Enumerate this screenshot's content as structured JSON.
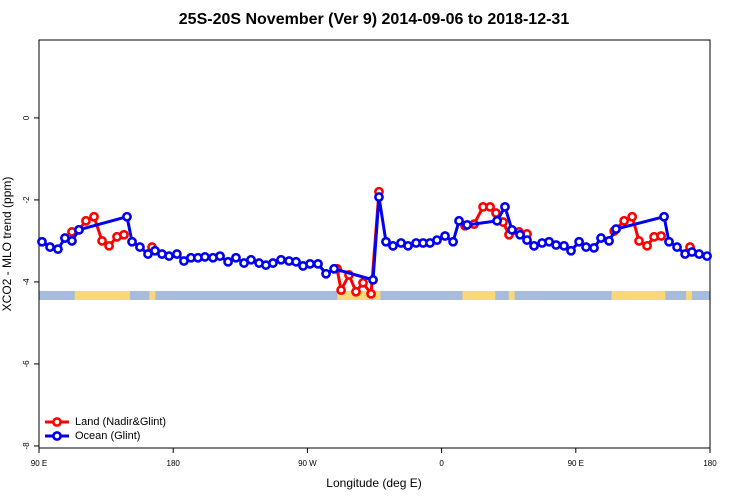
{
  "chart_data": {
    "type": "line",
    "title": "25S-20S November (Ver 9)   2014-09-06 to 2018-12-31",
    "xlabel": "Longitude (deg E)",
    "ylabel": "XCO2 - MLO trend (ppm)",
    "xlim": [
      90,
      540
    ],
    "ylim": [
      -8.05,
      1.9
    ],
    "xticks": [
      {
        "value": 90,
        "label": "90 E"
      },
      180,
      {
        "value": 270,
        "label": "90 W"
      },
      {
        "value": 360,
        "label": "0"
      },
      {
        "value": 450,
        "label": "90 E"
      },
      {
        "value": 540,
        "label": "180"
      }
    ],
    "yticks": [
      0,
      -2,
      -4,
      -6,
      -8
    ],
    "legend": "bottom-left",
    "mask": {
      "y": [
        -4.44,
        -4.22
      ],
      "ocean_color": "#a7bbdc",
      "land_color": "#f8d878",
      "land": [
        [
          114,
          151
        ],
        [
          164,
          168
        ],
        [
          290,
          319
        ],
        [
          374,
          396
        ],
        [
          405,
          409
        ],
        [
          474,
          510
        ],
        [
          524,
          528
        ]
      ]
    },
    "series": [
      {
        "name": "Land (Nadir&Glint)",
        "color": "#ff0000",
        "x": [
          112.1,
          116.8,
          121.5,
          126.9,
          132.3,
          137.0,
          142.3,
          147.0,
          150,
          165.8,
          250,
          289.9,
          292.6,
          297.9,
          302.6,
          307.3,
          312.7,
          318.0,
          340,
          375.7,
          381.8,
          387.8,
          392.5,
          396.5,
          401.2,
          405.2,
          411.9,
          417.3,
          450,
          475.7,
          482.4,
          487.8,
          492.4,
          497.8,
          502.5,
          507.2,
          520,
          526.6
        ],
        "values": [
          -2.78,
          -2.73,
          -2.51,
          -2.41,
          -3.0,
          -3.12,
          -2.9,
          -2.85,
          null,
          -3.15,
          null,
          -3.68,
          -4.2,
          -3.83,
          -4.24,
          -4.02,
          -4.29,
          -1.8,
          null,
          -2.63,
          -2.59,
          -2.17,
          -2.17,
          -2.32,
          -2.54,
          -2.85,
          -2.78,
          -2.83,
          null,
          -2.76,
          -2.51,
          -2.41,
          -3.0,
          -3.12,
          -2.9,
          -2.88,
          null,
          -3.15
        ]
      },
      {
        "name": "Ocean (Glint)",
        "color": "#0000ee",
        "x": [
          92.0,
          97.4,
          102.7,
          107.4,
          112.1,
          116.8,
          149.0,
          152.4,
          157.7,
          163.1,
          167.8,
          172.5,
          177.2,
          182.5,
          187.2,
          191.9,
          196.6,
          201.3,
          206.7,
          211.4,
          216.8,
          222.1,
          227.5,
          232.2,
          237.6,
          242.2,
          246.9,
          252.3,
          257.7,
          262.4,
          267.1,
          271.8,
          277.1,
          282.5,
          287.9,
          314.0,
          318.0,
          322.7,
          327.4,
          332.8,
          337.5,
          342.9,
          347.6,
          352.2,
          356.9,
          362.3,
          367.7,
          371.7,
          377.1,
          397.2,
          402.5,
          407.2,
          412.6,
          417.3,
          422.0,
          427.4,
          432.1,
          436.8,
          442.1,
          446.8,
          452.2,
          456.9,
          462.2,
          466.9,
          472.3,
          477.0,
          509.2,
          512.5,
          517.9,
          523.3,
          527.9,
          532.7,
          538.0
        ],
        "values": [
          -3.02,
          -3.15,
          -3.2,
          -2.93,
          -3.0,
          -2.73,
          -2.41,
          -3.02,
          -3.15,
          -3.32,
          -3.24,
          -3.32,
          -3.37,
          -3.32,
          -3.49,
          -3.41,
          -3.41,
          -3.39,
          -3.41,
          -3.37,
          -3.51,
          -3.41,
          -3.54,
          -3.46,
          -3.54,
          -3.59,
          -3.54,
          -3.46,
          -3.49,
          -3.51,
          -3.61,
          -3.56,
          -3.56,
          -3.8,
          -3.68,
          -3.95,
          -1.93,
          -3.02,
          -3.12,
          -3.05,
          -3.12,
          -3.05,
          -3.05,
          -3.05,
          -2.98,
          -2.88,
          -3.02,
          -2.51,
          -2.61,
          -2.51,
          -2.17,
          -2.73,
          -2.85,
          -2.98,
          -3.12,
          -3.05,
          -3.02,
          -3.1,
          -3.12,
          -3.24,
          -3.02,
          -3.15,
          -3.17,
          -2.93,
          -3.0,
          -2.71,
          -2.41,
          -3.02,
          -3.15,
          -3.32,
          -3.27,
          -3.32,
          -3.37
        ]
      }
    ]
  }
}
